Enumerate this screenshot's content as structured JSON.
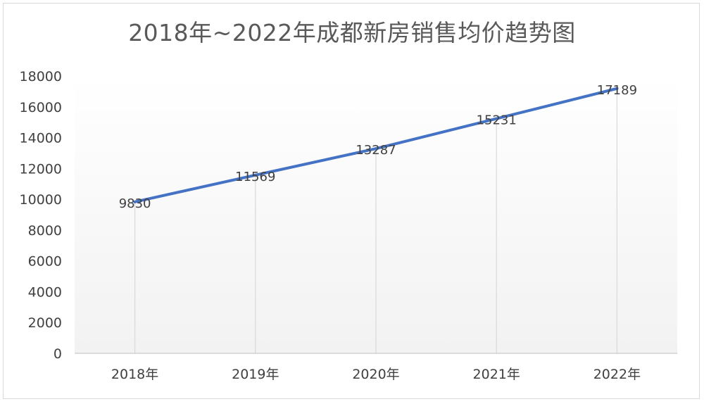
{
  "chart_data": {
    "type": "line",
    "title": "2018年~2022年成都新房销售均价趋势图",
    "xlabel": "",
    "ylabel": "",
    "categories": [
      "2018年",
      "2019年",
      "2020年",
      "2021年",
      "2022年"
    ],
    "series": [
      {
        "values": [
          9830,
          11569,
          13287,
          15231,
          17189
        ]
      }
    ],
    "data_labels": [
      "9830",
      "11569",
      "13287",
      "15231",
      "17189"
    ],
    "yticks": [
      "0",
      "2000",
      "4000",
      "6000",
      "8000",
      "10000",
      "12000",
      "14000",
      "16000",
      "18000"
    ],
    "ylim": [
      0,
      18000
    ],
    "grid": "vertical drop lines at categories",
    "legend": "none",
    "colors": {
      "line": "#4472C4",
      "dropline": "#d9d9d9",
      "plot_gradient_top": "#ffffff",
      "plot_gradient_bottom": "#f2f2f2"
    }
  }
}
